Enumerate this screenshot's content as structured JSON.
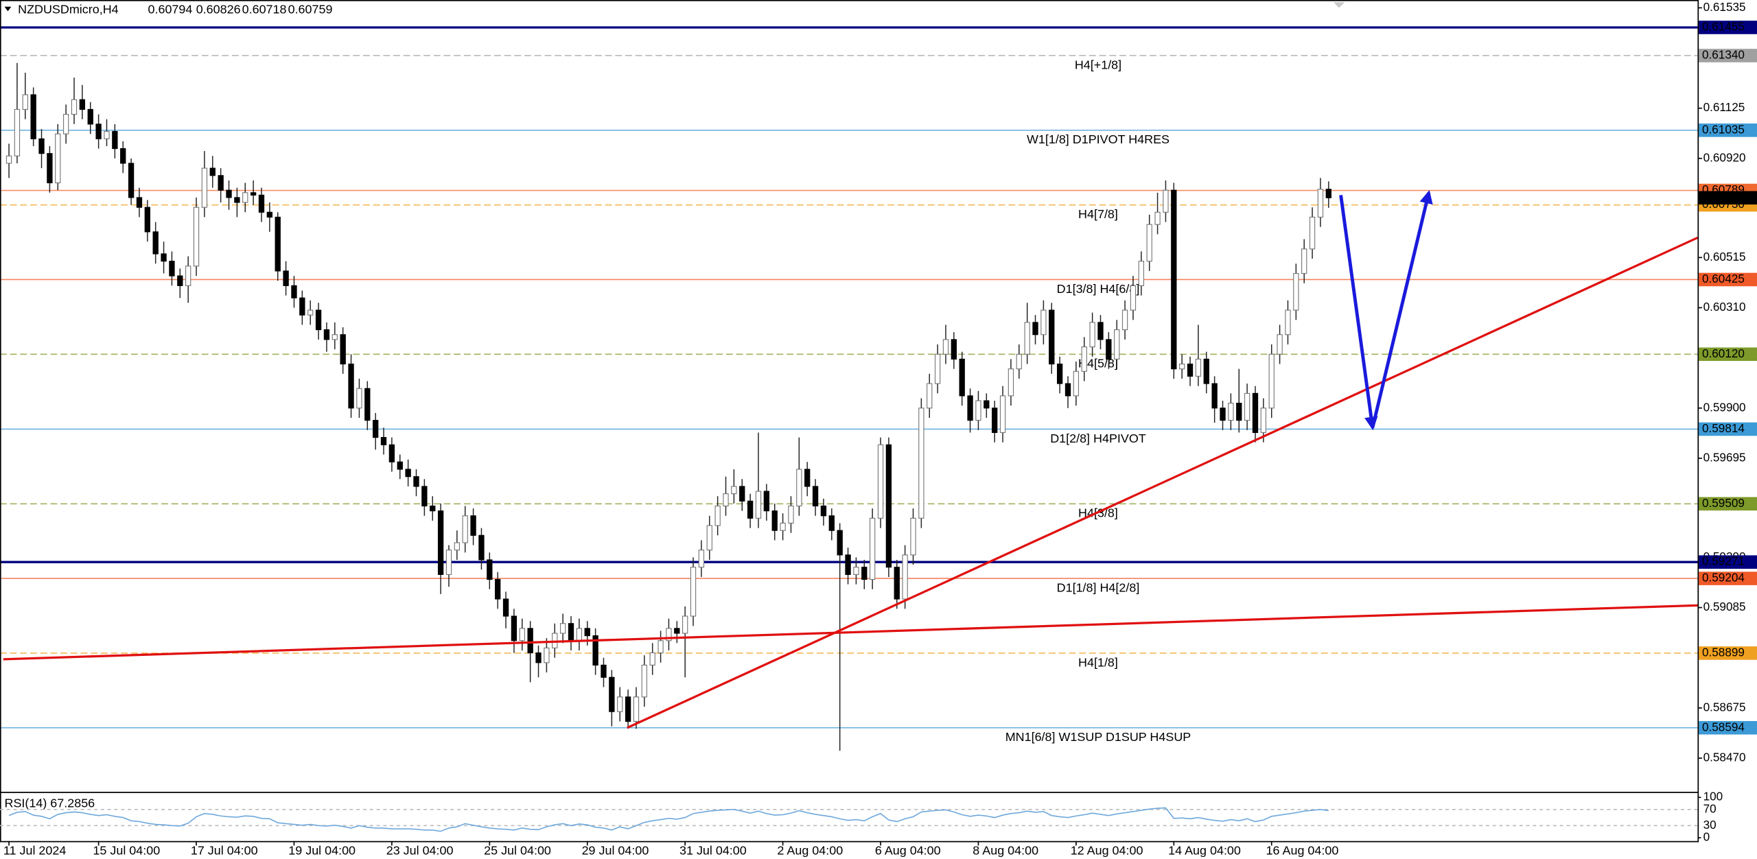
{
  "chart_data": {
    "type": "candlestick",
    "title": "NZDUSDmicro,H4",
    "xlim": [
      -1.1,
      207.3
    ],
    "ylim": [
      0.58337,
      0.61567
    ],
    "grid": false,
    "yticks": [
      0.61535,
      0.61125,
      {
        "value": 0.6092,
        "label": "0.60920"
      },
      0.60515,
      {
        "value": 0.6031,
        "label": "0.60310"
      },
      {
        "value": 0.599,
        "label": "0.59900"
      },
      0.59695,
      {
        "value": 0.5929,
        "label": "0.59290"
      },
      0.59085,
      0.58675,
      {
        "value": 0.5847,
        "label": "0.58470"
      }
    ],
    "xticks": [
      {
        "value": 0,
        "label": "11 Jul 2024"
      },
      {
        "value": 11,
        "label": "15 Jul 04:00"
      },
      {
        "value": 23,
        "label": "17 Jul 04:00"
      },
      {
        "value": 35,
        "label": "19 Jul 04:00"
      },
      {
        "value": 47,
        "label": "23 Jul 04:00"
      },
      {
        "value": 59,
        "label": "25 Jul 04:00"
      },
      {
        "value": 71,
        "label": "29 Jul 04:00"
      },
      {
        "value": 83,
        "label": "31 Jul 04:00"
      },
      {
        "value": 95,
        "label": "2 Aug 04:00"
      },
      {
        "value": 107,
        "label": "6 Aug 04:00"
      },
      {
        "value": 119,
        "label": "8 Aug 04:00"
      },
      {
        "value": 131,
        "label": "12 Aug 04:00"
      },
      {
        "value": 143,
        "label": "14 Aug 04:00"
      },
      {
        "value": 155,
        "label": "16 Aug 04:00"
      }
    ],
    "last_price_color": "#000000",
    "levels": [
      {
        "price": 0.61455,
        "color": "#00007f",
        "thick": true
      },
      {
        "price": {
          "value": 0.6134,
          "label": "0.61340"
        },
        "color": "#a0a0a0",
        "dashed": true,
        "text": "H4[+1/8]"
      },
      {
        "price": 0.61035,
        "color": "#3c9ad6",
        "text": "W1[1/8] D1PIVOT H4RES"
      },
      {
        "price": 0.60789,
        "color": "#f06a30"
      },
      {
        "price": {
          "value": 0.6073,
          "label": "0.60730"
        },
        "color": "#f0a020",
        "dashed": true,
        "text": "H4[7/8]"
      },
      {
        "price": 0.60425,
        "color": "#f05a28",
        "text": "D1[3/8] H4[6/8]"
      },
      {
        "price": {
          "value": 0.6012,
          "label": "0.60120"
        },
        "color": "#7d9a2a",
        "dashed": true,
        "text": "H4[5/8]"
      },
      {
        "price": 0.59814,
        "color": "#3c9ad6",
        "text": "D1[2/8] H4PIVOT"
      },
      {
        "price": 0.59509,
        "color": "#7d9a2a",
        "dashed": true,
        "text": "H4[3/8]"
      },
      {
        "price": 0.59271,
        "color": "#00007f",
        "thick": true
      },
      {
        "price": 0.59204,
        "color": "#f05a28",
        "text": "D1[1/8] H4[2/8]"
      },
      {
        "price": 0.58899,
        "color": "#f0a020",
        "dashed": true,
        "text": "H4[1/8]"
      },
      {
        "price": 0.58594,
        "color": "#3c9ad6",
        "text": "MN1[6/8] W1SUP D1SUP H4SUP"
      }
    ],
    "trendlines": [
      {
        "color": "#e01010",
        "points": [
          [
            75.9,
            0.58594
          ],
          [
            207.3,
            0.60596
          ]
        ]
      },
      {
        "color": "#e01010",
        "points": [
          [
            -0.7,
            0.58874
          ],
          [
            207.3,
            0.59094
          ]
        ]
      },
      {
        "color": "#1a1adc",
        "arrow": true,
        "points": [
          [
            163.5,
            0.6077
          ],
          [
            167.4,
            0.5982
          ],
          [
            174.3,
            0.6078
          ]
        ]
      }
    ],
    "ohlc": [
      [
        0.609,
        0.6098,
        0.6084,
        0.6093
      ],
      [
        0.6093,
        0.6131,
        0.609,
        0.6112
      ],
      [
        0.6112,
        0.6127,
        0.6108,
        0.6118
      ],
      [
        0.6118,
        0.6121,
        0.6097,
        0.61
      ],
      [
        0.61,
        0.6104,
        0.6088,
        0.6094
      ],
      [
        0.6094,
        0.6097,
        0.6078,
        0.6082
      ],
      [
        0.6082,
        0.6106,
        0.6079,
        0.6102
      ],
      [
        0.6102,
        0.6114,
        0.6098,
        0.611
      ],
      [
        0.611,
        0.6125,
        0.6106,
        0.6116
      ],
      [
        0.6116,
        0.6122,
        0.6108,
        0.6112
      ],
      [
        0.6112,
        0.6115,
        0.6102,
        0.6106
      ],
      [
        0.6106,
        0.611,
        0.6096,
        0.61
      ],
      [
        0.61,
        0.6108,
        0.6097,
        0.6103
      ],
      [
        0.6103,
        0.6106,
        0.6092,
        0.6096
      ],
      [
        0.6096,
        0.6099,
        0.6086,
        0.609
      ],
      [
        0.609,
        0.6092,
        0.6073,
        0.6076
      ],
      [
        0.6076,
        0.608,
        0.6068,
        0.6072
      ],
      [
        0.6072,
        0.6075,
        0.6058,
        0.6062
      ],
      [
        0.6062,
        0.6066,
        0.6049,
        0.6053
      ],
      [
        0.6053,
        0.6058,
        0.6045,
        0.605
      ],
      [
        0.605,
        0.6054,
        0.604,
        0.6044
      ],
      [
        0.6044,
        0.6047,
        0.6035,
        0.604
      ],
      [
        0.604,
        0.6052,
        0.6033,
        0.6048
      ],
      [
        0.6048,
        0.6076,
        0.6044,
        0.6072
      ],
      [
        0.6072,
        0.6095,
        0.6068,
        0.6088
      ],
      [
        0.6088,
        0.6093,
        0.608,
        0.6085
      ],
      [
        0.6085,
        0.6088,
        0.6074,
        0.6079
      ],
      [
        0.6079,
        0.6083,
        0.6071,
        0.6076
      ],
      [
        0.6076,
        0.608,
        0.6068,
        0.6074
      ],
      [
        0.6074,
        0.6082,
        0.607,
        0.6078
      ],
      [
        0.6078,
        0.6083,
        0.6073,
        0.6077
      ],
      [
        0.6077,
        0.608,
        0.6066,
        0.607
      ],
      [
        0.607,
        0.6074,
        0.6062,
        0.6068
      ],
      [
        0.6068,
        0.607,
        0.6042,
        0.6046
      ],
      [
        0.6046,
        0.605,
        0.6036,
        0.604
      ],
      [
        0.604,
        0.6044,
        0.6031,
        0.6035
      ],
      [
        0.6035,
        0.6038,
        0.6024,
        0.6028
      ],
      [
        0.6028,
        0.6034,
        0.6024,
        0.603
      ],
      [
        0.603,
        0.6033,
        0.6018,
        0.6022
      ],
      [
        0.6022,
        0.6025,
        0.6013,
        0.6018
      ],
      [
        0.6018,
        0.6025,
        0.6014,
        0.602
      ],
      [
        0.602,
        0.6023,
        0.6004,
        0.6008
      ],
      [
        0.6008,
        0.6012,
        0.5986,
        0.599
      ],
      [
        0.599,
        0.6002,
        0.5986,
        0.5998
      ],
      [
        0.5998,
        0.6001,
        0.5981,
        0.5985
      ],
      [
        0.5985,
        0.5988,
        0.5973,
        0.5978
      ],
      [
        0.5978,
        0.5982,
        0.5971,
        0.5975
      ],
      [
        0.5975,
        0.5978,
        0.5964,
        0.5968
      ],
      [
        0.5968,
        0.5971,
        0.5961,
        0.5965
      ],
      [
        0.5965,
        0.5969,
        0.5958,
        0.5962
      ],
      [
        0.5962,
        0.5965,
        0.5954,
        0.5958
      ],
      [
        0.5958,
        0.5961,
        0.5946,
        0.595
      ],
      [
        0.595,
        0.5954,
        0.5944,
        0.5948
      ],
      [
        0.5948,
        0.5951,
        0.5914,
        0.5922
      ],
      [
        0.5922,
        0.5934,
        0.5917,
        0.5932
      ],
      [
        0.5932,
        0.594,
        0.5928,
        0.5935
      ],
      [
        0.5935,
        0.595,
        0.5931,
        0.5946
      ],
      [
        0.5946,
        0.5949,
        0.5934,
        0.5938
      ],
      [
        0.5938,
        0.5941,
        0.5924,
        0.5928
      ],
      [
        0.5928,
        0.5931,
        0.5916,
        0.592
      ],
      [
        0.592,
        0.5923,
        0.5908,
        0.5912
      ],
      [
        0.5912,
        0.5915,
        0.59,
        0.5905
      ],
      [
        0.5905,
        0.5908,
        0.589,
        0.5895
      ],
      [
        0.5895,
        0.5904,
        0.5891,
        0.59
      ],
      [
        0.59,
        0.5903,
        0.5878,
        0.589
      ],
      [
        0.589,
        0.5893,
        0.588,
        0.5886
      ],
      [
        0.5886,
        0.5896,
        0.5882,
        0.5892
      ],
      [
        0.5892,
        0.5902,
        0.5888,
        0.5898
      ],
      [
        0.5898,
        0.5906,
        0.5894,
        0.5902
      ],
      [
        0.5902,
        0.5905,
        0.5891,
        0.5895
      ],
      [
        0.5895,
        0.5904,
        0.5891,
        0.59
      ],
      [
        0.59,
        0.5903,
        0.5893,
        0.5897
      ],
      [
        0.5897,
        0.59,
        0.5881,
        0.5885
      ],
      [
        0.5885,
        0.5888,
        0.5876,
        0.588
      ],
      [
        0.588,
        0.5883,
        0.586,
        0.5866
      ],
      [
        0.5866,
        0.5876,
        0.5862,
        0.5872
      ],
      [
        0.5872,
        0.5875,
        0.5859,
        0.5862
      ],
      [
        0.5862,
        0.5876,
        0.5859,
        0.5872
      ],
      [
        0.5872,
        0.5889,
        0.5868,
        0.5885
      ],
      [
        0.5885,
        0.5894,
        0.5881,
        0.589
      ],
      [
        0.589,
        0.5899,
        0.5886,
        0.5895
      ],
      [
        0.5895,
        0.5904,
        0.5891,
        0.59
      ],
      [
        0.59,
        0.5903,
        0.5894,
        0.5898
      ],
      [
        0.5898,
        0.5909,
        0.588,
        0.5905
      ],
      [
        0.5905,
        0.5929,
        0.5901,
        0.5925
      ],
      [
        0.5925,
        0.5936,
        0.5921,
        0.5932
      ],
      [
        0.5932,
        0.5946,
        0.5928,
        0.5942
      ],
      [
        0.5942,
        0.5954,
        0.5938,
        0.595
      ],
      [
        0.595,
        0.5962,
        0.5946,
        0.5955
      ],
      [
        0.5955,
        0.5965,
        0.5951,
        0.5958
      ],
      [
        0.5958,
        0.5961,
        0.5948,
        0.5952
      ],
      [
        0.5952,
        0.5955,
        0.5941,
        0.5945
      ],
      [
        0.5945,
        0.598,
        0.5941,
        0.5956
      ],
      [
        0.5956,
        0.5959,
        0.5944,
        0.5948
      ],
      [
        0.5948,
        0.5951,
        0.5936,
        0.594
      ],
      [
        0.594,
        0.5947,
        0.5936,
        0.5943
      ],
      [
        0.5943,
        0.5954,
        0.5939,
        0.595
      ],
      [
        0.595,
        0.5978,
        0.5946,
        0.5965
      ],
      [
        0.5965,
        0.5968,
        0.5954,
        0.5958
      ],
      [
        0.5958,
        0.5961,
        0.5946,
        0.595
      ],
      [
        0.595,
        0.5953,
        0.5942,
        0.5946
      ],
      [
        0.5946,
        0.5949,
        0.5936,
        0.594
      ],
      [
        0.594,
        0.5943,
        0.585,
        0.593
      ],
      [
        0.593,
        0.5933,
        0.5918,
        0.5922
      ],
      [
        0.5922,
        0.5929,
        0.5918,
        0.5925
      ],
      [
        0.5925,
        0.5928,
        0.5916,
        0.592
      ],
      [
        0.592,
        0.5949,
        0.5916,
        0.5945
      ],
      [
        0.5945,
        0.5978,
        0.5941,
        0.5975
      ],
      [
        0.5975,
        0.5978,
        0.5921,
        0.5925
      ],
      [
        0.5925,
        0.5928,
        0.5908,
        0.5912
      ],
      [
        0.5912,
        0.5934,
        0.5908,
        0.593
      ],
      [
        0.593,
        0.5949,
        0.5926,
        0.5945
      ],
      [
        0.5945,
        0.5994,
        0.5941,
        0.599
      ],
      [
        0.599,
        0.6004,
        0.5986,
        0.6
      ],
      [
        0.6,
        0.6016,
        0.5996,
        0.6012
      ],
      [
        0.6012,
        0.6024,
        0.6008,
        0.6018
      ],
      [
        0.6018,
        0.6021,
        0.6006,
        0.601
      ],
      [
        0.601,
        0.6013,
        0.5991,
        0.5995
      ],
      [
        0.5995,
        0.5998,
        0.598,
        0.5985
      ],
      [
        0.5985,
        0.5997,
        0.5981,
        0.5993
      ],
      [
        0.5993,
        0.5996,
        0.5986,
        0.599
      ],
      [
        0.599,
        0.5993,
        0.5976,
        0.598
      ],
      [
        0.598,
        0.5999,
        0.5976,
        0.5995
      ],
      [
        0.5995,
        0.601,
        0.5991,
        0.6006
      ],
      [
        0.6006,
        0.6016,
        0.6002,
        0.6012
      ],
      [
        0.6012,
        0.6033,
        0.6008,
        0.6025
      ],
      [
        0.6025,
        0.6028,
        0.6016,
        0.602
      ],
      [
        0.602,
        0.6034,
        0.6016,
        0.603
      ],
      [
        0.603,
        0.6033,
        0.6004,
        0.6008
      ],
      [
        0.6008,
        0.6011,
        0.5996,
        0.6
      ],
      [
        0.6,
        0.6003,
        0.599,
        0.5995
      ],
      [
        0.5995,
        0.6009,
        0.5991,
        0.6005
      ],
      [
        0.6005,
        0.6019,
        0.6001,
        0.6015
      ],
      [
        0.6015,
        0.6029,
        0.6011,
        0.6025
      ],
      [
        0.6025,
        0.6028,
        0.6014,
        0.6018
      ],
      [
        0.6018,
        0.6021,
        0.6006,
        0.601
      ],
      [
        0.601,
        0.6026,
        0.6006,
        0.6022
      ],
      [
        0.6022,
        0.6034,
        0.6018,
        0.603
      ],
      [
        0.603,
        0.6044,
        0.6026,
        0.604
      ],
      [
        0.604,
        0.6054,
        0.6036,
        0.605
      ],
      [
        0.605,
        0.6069,
        0.6046,
        0.6065
      ],
      [
        0.6065,
        0.6078,
        0.6061,
        0.607
      ],
      [
        0.607,
        0.6083,
        0.6066,
        0.6079
      ],
      [
        0.6079,
        0.6082,
        0.6002,
        0.6006
      ],
      [
        0.6006,
        0.6012,
        0.6002,
        0.6008
      ],
      [
        0.6008,
        0.6011,
        0.5999,
        0.6003
      ],
      [
        0.6003,
        0.6024,
        0.5999,
        0.601
      ],
      [
        0.601,
        0.6013,
        0.5996,
        0.6
      ],
      [
        0.6,
        0.6003,
        0.5984,
        0.599
      ],
      [
        0.599,
        0.5993,
        0.5981,
        0.5985
      ],
      [
        0.5985,
        0.5996,
        0.5981,
        0.5992
      ],
      [
        0.5992,
        0.6006,
        0.598,
        0.5985
      ],
      [
        0.5985,
        0.6,
        0.5981,
        0.5996
      ],
      [
        0.5996,
        0.5999,
        0.5976,
        0.598
      ],
      [
        0.598,
        0.5994,
        0.5976,
        0.599
      ],
      [
        0.599,
        0.6016,
        0.5986,
        0.6012
      ],
      [
        0.6012,
        0.6024,
        0.6008,
        0.602
      ],
      [
        0.602,
        0.6034,
        0.6016,
        0.603
      ],
      [
        0.603,
        0.6049,
        0.6026,
        0.6045
      ],
      [
        0.6045,
        0.6059,
        0.6041,
        0.6055
      ],
      [
        0.6055,
        0.6072,
        0.6051,
        0.6068
      ],
      [
        0.6068,
        0.6084,
        0.6064,
        0.60794
      ],
      [
        0.60794,
        0.60826,
        0.60718,
        0.60759
      ]
    ],
    "rsi": {
      "label": "RSI(14) 67.2856",
      "color": "#6fa8dc",
      "ylim": [
        0,
        100
      ],
      "yticks": [
        100,
        70,
        30,
        0
      ],
      "values": [
        55,
        63,
        65,
        56,
        53,
        47,
        58,
        62,
        64,
        62,
        58,
        55,
        57,
        53,
        50,
        42,
        40,
        36,
        33,
        32,
        30,
        29,
        36,
        52,
        60,
        58,
        54,
        52,
        51,
        54,
        53,
        48,
        47,
        37,
        35,
        33,
        31,
        33,
        30,
        29,
        31,
        28,
        24,
        30,
        26,
        24,
        24,
        22,
        22,
        22,
        21,
        19,
        19,
        16,
        24,
        27,
        35,
        31,
        27,
        24,
        22,
        21,
        19,
        24,
        21,
        20,
        27,
        32,
        35,
        30,
        34,
        32,
        26,
        24,
        19,
        27,
        22,
        30,
        38,
        42,
        45,
        48,
        46,
        50,
        60,
        63,
        66,
        68,
        69,
        70,
        66,
        61,
        66,
        60,
        56,
        57,
        61,
        67,
        62,
        58,
        55,
        52,
        47,
        43,
        45,
        42,
        52,
        60,
        44,
        40,
        47,
        52,
        64,
        66,
        68,
        69,
        64,
        57,
        53,
        56,
        54,
        50,
        56,
        60,
        62,
        66,
        63,
        65,
        55,
        52,
        50,
        54,
        57,
        61,
        58,
        55,
        59,
        62,
        65,
        68,
        71,
        73,
        74,
        48,
        49,
        47,
        50,
        46,
        43,
        41,
        45,
        42,
        47,
        40,
        44,
        53,
        56,
        59,
        62,
        66,
        68,
        70,
        67
      ]
    }
  }
}
